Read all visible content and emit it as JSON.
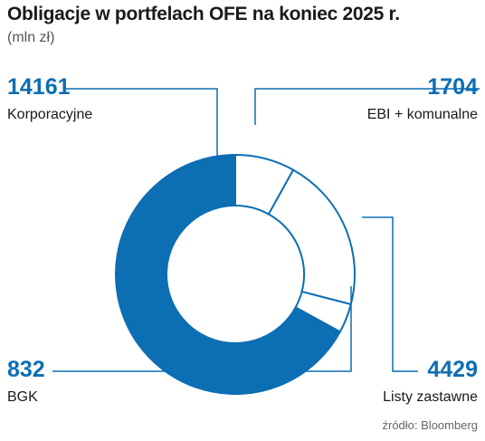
{
  "chart_data": {
    "type": "pie",
    "title": "Obligacje w portfelach OFE na koniec 2025 r.",
    "subtitle": "(mln zł)",
    "slices": [
      {
        "label": "EBI + komunalne",
        "value": 1704,
        "value_text": "1704",
        "color": "#ffffff"
      },
      {
        "label": "Listy zastawne",
        "value": 4429,
        "value_text": "4429",
        "color": "#ffffff"
      },
      {
        "label": "BGK",
        "value": 832,
        "value_text": "832",
        "color": "#ffffff"
      },
      {
        "label": "Korporacyjne",
        "value": 14161,
        "value_text": "14161",
        "color": "#0c6eb3"
      }
    ],
    "start_angle": "top",
    "direction": "clockwise",
    "accent_color": "#0c6eb3",
    "source": "źródło: Bloomberg"
  }
}
